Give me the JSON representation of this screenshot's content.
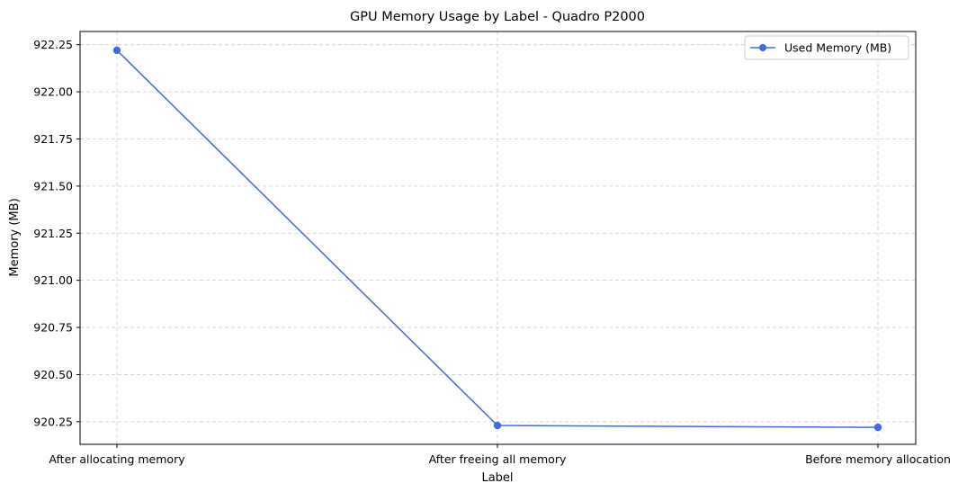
{
  "chart_data": {
    "type": "line",
    "title": "GPU Memory Usage by Label - Quadro P2000",
    "xlabel": "Label",
    "ylabel": "Memory (MB)",
    "categories": [
      "After allocating memory",
      "After freeing all memory",
      "Before memory allocation"
    ],
    "series": [
      {
        "name": "Used Memory (MB)",
        "values": [
          922.22,
          920.23,
          920.22
        ],
        "color": "#4169e1"
      }
    ],
    "ylim": [
      920.13,
      922.32
    ],
    "yticks": [
      "920.25",
      "920.50",
      "920.75",
      "921.00",
      "921.25",
      "921.50",
      "921.75",
      "922.00",
      "922.25"
    ],
    "grid": true,
    "legend": "top-right"
  }
}
